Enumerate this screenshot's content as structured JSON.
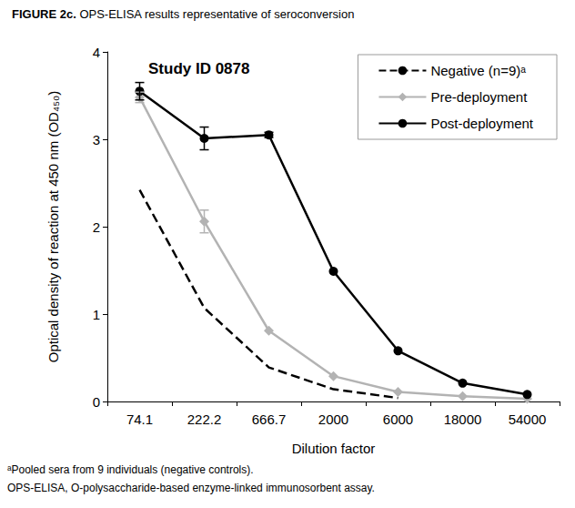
{
  "chart_data": {
    "type": "line",
    "figure_label": "FIGURE 2c.",
    "title": "OPS-ELISA results representative of seroconversion",
    "annotation": "Study ID 0878",
    "x_label": "Dilution factor",
    "y_label": "Optical density of reaction at 450 nm (OD₄₅₀)",
    "categories": [
      "74.1",
      "222.2",
      "666.7",
      "2000",
      "6000",
      "18000",
      "54000"
    ],
    "series": [
      {
        "name": "Negative (n=9)ᵃ",
        "color": "#000000",
        "line_style": "dashed",
        "marker": "none",
        "values": [
          2.42,
          1.07,
          0.39,
          0.14,
          0.04,
          null,
          null
        ]
      },
      {
        "name": "Pre-deployment",
        "color": "#b3b3b3",
        "line_style": "solid",
        "marker": "diamond",
        "values": [
          3.48,
          2.06,
          0.81,
          0.29,
          0.11,
          0.06,
          0.03
        ],
        "errors": [
          0.06,
          0.13,
          null,
          null,
          null,
          null,
          null
        ]
      },
      {
        "name": "Post-deployment",
        "color": "#000000",
        "line_style": "solid",
        "marker": "circle",
        "values": [
          3.55,
          3.01,
          3.05,
          1.49,
          0.58,
          0.21,
          0.08
        ],
        "errors": [
          0.1,
          0.13,
          0.03,
          null,
          null,
          null,
          null
        ]
      }
    ],
    "ylim": [
      0,
      4
    ],
    "yticks": [
      0,
      1,
      2,
      3,
      4
    ],
    "grid": false,
    "legend": "upper right",
    "footnotes": [
      "ᵃPooled sera from 9 individuals (negative controls).",
      "OPS-ELISA, O-polysaccharide-based enzyme-linked immunosorbent assay."
    ]
  }
}
